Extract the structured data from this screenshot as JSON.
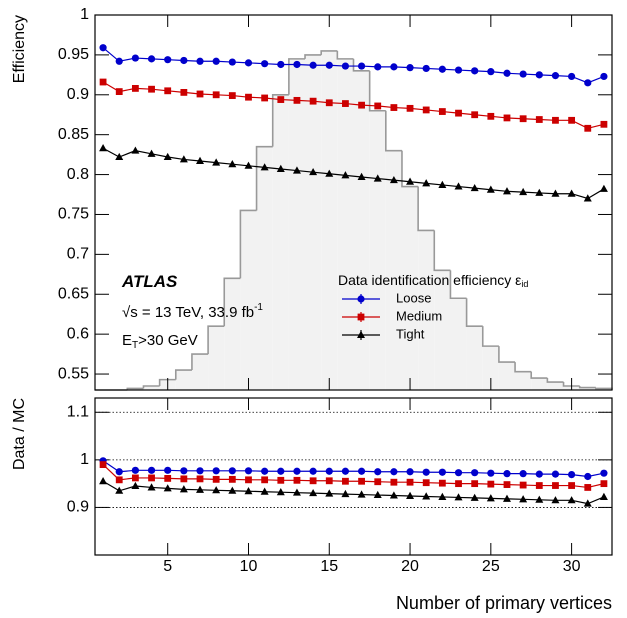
{
  "chart_data": [
    {
      "type": "line",
      "ylabel": "Efficiency",
      "x": [
        1,
        2,
        3,
        4,
        5,
        6,
        7,
        8,
        9,
        10,
        11,
        12,
        13,
        14,
        15,
        16,
        17,
        18,
        19,
        20,
        21,
        22,
        23,
        24,
        25,
        26,
        27,
        28,
        29,
        30,
        31,
        32
      ],
      "xlim": [
        0.5,
        32.5
      ],
      "ylim": [
        0.53,
        1
      ],
      "yticks": [
        0.55,
        0.6,
        0.65,
        0.7,
        0.75,
        0.8,
        0.85,
        0.9,
        0.95,
        1
      ],
      "series": [
        {
          "name": "Loose",
          "color": "#0000cc",
          "marker": "circle",
          "values": [
            0.959,
            0.942,
            0.946,
            0.945,
            0.944,
            0.943,
            0.942,
            0.942,
            0.941,
            0.94,
            0.939,
            0.938,
            0.938,
            0.937,
            0.937,
            0.936,
            0.936,
            0.935,
            0.935,
            0.934,
            0.933,
            0.932,
            0.931,
            0.93,
            0.929,
            0.927,
            0.926,
            0.925,
            0.924,
            0.923,
            0.915,
            0.923
          ]
        },
        {
          "name": "Medium",
          "color": "#cc0000",
          "marker": "square",
          "values": [
            0.916,
            0.904,
            0.908,
            0.907,
            0.905,
            0.903,
            0.901,
            0.9,
            0.899,
            0.897,
            0.896,
            0.894,
            0.893,
            0.892,
            0.89,
            0.889,
            0.887,
            0.886,
            0.884,
            0.883,
            0.881,
            0.879,
            0.877,
            0.875,
            0.873,
            0.871,
            0.87,
            0.869,
            0.868,
            0.868,
            0.858,
            0.863
          ]
        },
        {
          "name": "Tight",
          "color": "#000000",
          "marker": "triangle",
          "values": [
            0.833,
            0.822,
            0.83,
            0.826,
            0.822,
            0.819,
            0.817,
            0.815,
            0.813,
            0.811,
            0.809,
            0.807,
            0.805,
            0.803,
            0.801,
            0.799,
            0.797,
            0.795,
            0.793,
            0.791,
            0.789,
            0.787,
            0.785,
            0.783,
            0.781,
            0.779,
            0.778,
            0.777,
            0.776,
            0.776,
            0.77,
            0.782
          ]
        }
      ],
      "histogram": {
        "color": "#f2f2f2",
        "edgecolor": "#999999",
        "bins": [
          0.5,
          1.5,
          2.5,
          3.5,
          4.5,
          5.5,
          6.5,
          7.5,
          8.5,
          9.5,
          10.5,
          11.5,
          12.5,
          13.5,
          14.5,
          15.5,
          16.5,
          17.5,
          18.5,
          19.5,
          20.5,
          21.5,
          22.5,
          23.5,
          24.5,
          25.5,
          26.5,
          27.5,
          28.5,
          29.5,
          30.5,
          31.5,
          32.5
        ],
        "counts": [
          0.53,
          0.53,
          0.532,
          0.535,
          0.543,
          0.555,
          0.575,
          0.61,
          0.67,
          0.755,
          0.835,
          0.9,
          0.945,
          0.95,
          0.955,
          0.945,
          0.93,
          0.88,
          0.83,
          0.785,
          0.73,
          0.68,
          0.645,
          0.61,
          0.585,
          0.565,
          0.553,
          0.545,
          0.54,
          0.535,
          0.533,
          0.532
        ]
      },
      "legend_title": {
        "text": "Data identification efficiency ε",
        "sub": "id"
      },
      "annotations": [
        {
          "text": "ATLAS"
        },
        {
          "text": "√s = 13 TeV, 33.9 fb",
          "sup": "-1"
        },
        {
          "text": "E",
          "sub": "T",
          "after": ">30 GeV"
        }
      ]
    },
    {
      "type": "line",
      "ylabel": "Data / MC",
      "xlabel": "Number of primary vertices",
      "x": [
        1,
        2,
        3,
        4,
        5,
        6,
        7,
        8,
        9,
        10,
        11,
        12,
        13,
        14,
        15,
        16,
        17,
        18,
        19,
        20,
        21,
        22,
        23,
        24,
        25,
        26,
        27,
        28,
        29,
        30,
        31,
        32
      ],
      "xlim": [
        0.5,
        32.5
      ],
      "xticks": [
        5,
        10,
        15,
        20,
        25,
        30
      ],
      "ylim": [
        0.8,
        1.13
      ],
      "yticks": [
        0.9,
        1,
        1.1
      ],
      "grid": true,
      "series": [
        {
          "name": "Loose",
          "color": "#0000cc",
          "marker": "circle",
          "values": [
            0.998,
            0.975,
            0.978,
            0.978,
            0.978,
            0.977,
            0.977,
            0.977,
            0.977,
            0.977,
            0.976,
            0.976,
            0.976,
            0.976,
            0.976,
            0.976,
            0.976,
            0.975,
            0.975,
            0.975,
            0.974,
            0.974,
            0.973,
            0.973,
            0.972,
            0.971,
            0.971,
            0.97,
            0.97,
            0.969,
            0.965,
            0.972
          ]
        },
        {
          "name": "Medium",
          "color": "#cc0000",
          "marker": "square",
          "values": [
            0.99,
            0.958,
            0.962,
            0.962,
            0.961,
            0.96,
            0.96,
            0.959,
            0.959,
            0.958,
            0.958,
            0.957,
            0.957,
            0.956,
            0.956,
            0.955,
            0.955,
            0.954,
            0.953,
            0.953,
            0.952,
            0.951,
            0.95,
            0.95,
            0.949,
            0.948,
            0.947,
            0.946,
            0.946,
            0.946,
            0.942,
            0.95
          ]
        },
        {
          "name": "Tight",
          "color": "#000000",
          "marker": "triangle",
          "values": [
            0.955,
            0.935,
            0.945,
            0.942,
            0.94,
            0.938,
            0.937,
            0.936,
            0.935,
            0.934,
            0.933,
            0.932,
            0.931,
            0.93,
            0.929,
            0.928,
            0.927,
            0.926,
            0.925,
            0.924,
            0.923,
            0.922,
            0.921,
            0.92,
            0.919,
            0.918,
            0.917,
            0.916,
            0.915,
            0.915,
            0.908,
            0.922
          ]
        }
      ]
    }
  ]
}
